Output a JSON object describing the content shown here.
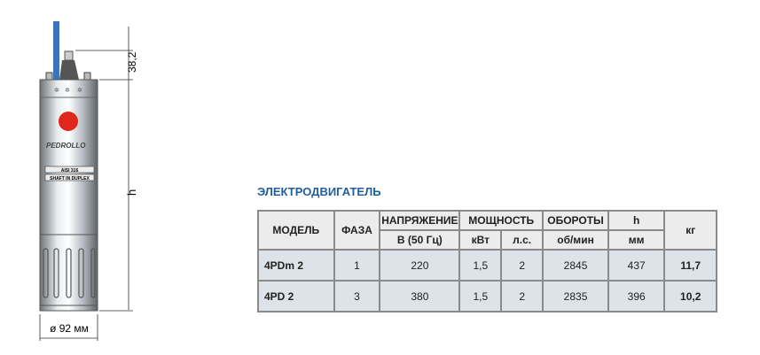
{
  "drawing": {
    "brand": "PEDROLLO",
    "plate1": "AISI 316",
    "plate2": "SHAFT IN DUPLEX",
    "dim_top": "38,2",
    "dim_h": "h",
    "dim_d": "ø 92 мм"
  },
  "table": {
    "title": "ЭЛЕКТРОДВИГАТЕЛЬ",
    "headers": {
      "model": "МОДЕЛЬ",
      "phase": "ФАЗА",
      "voltage": "НАПРЯЖЕНИЕ",
      "voltage_unit": "В (50 Гц)",
      "power": "МОЩНОСТЬ",
      "kw": "кВт",
      "hp": "л.с.",
      "rpm": "ОБОРОТЫ",
      "rpm_unit": "об/мин",
      "h": "h",
      "h_unit": "мм",
      "kg": "кг"
    },
    "rows": [
      {
        "model": "4PDm 2",
        "phase": "1",
        "voltage": "220",
        "kw": "1,5",
        "hp": "2",
        "rpm": "2845",
        "h": "437",
        "kg": "11,7"
      },
      {
        "model": "4PD 2",
        "phase": "3",
        "voltage": "380",
        "kw": "1,5",
        "hp": "2",
        "rpm": "2835",
        "h": "396",
        "kg": "10,2"
      }
    ]
  }
}
